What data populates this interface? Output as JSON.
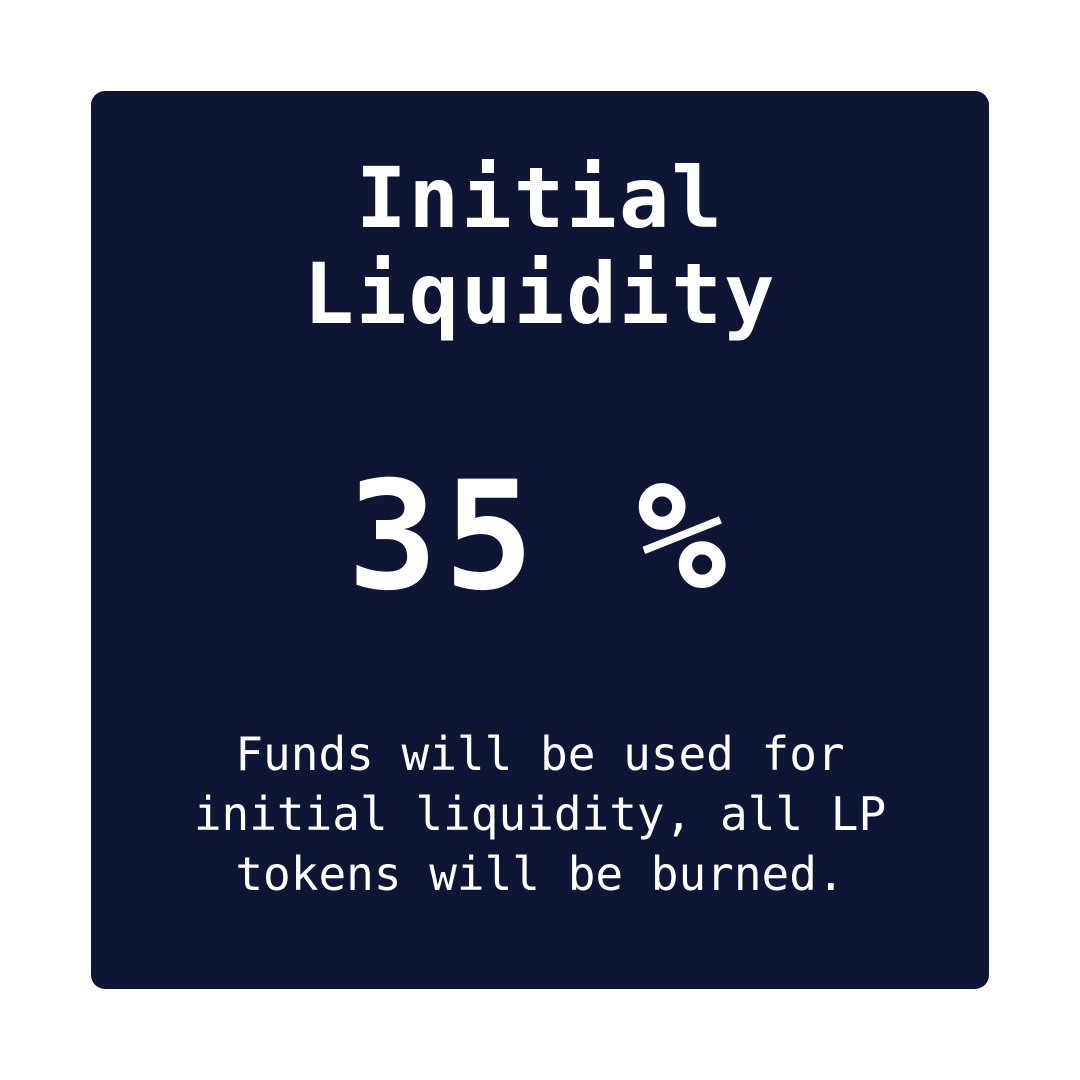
{
  "card": {
    "title_line1": "Initial",
    "title_line2": "Liquidity",
    "value": "35 %",
    "description_lines": [
      "Funds will be used for",
      "initial liquidity, all LP",
      "tokens will be burned."
    ]
  },
  "colors": {
    "background": "#ffffff",
    "card": "#0e1535",
    "text": "#ffffff"
  }
}
